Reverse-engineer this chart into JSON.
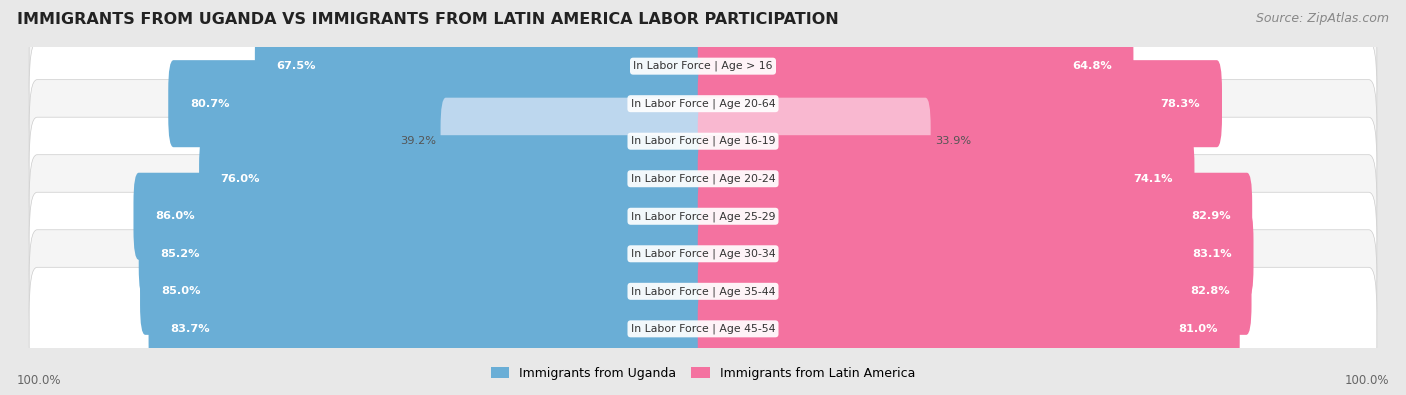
{
  "title": "IMMIGRANTS FROM UGANDA VS IMMIGRANTS FROM LATIN AMERICA LABOR PARTICIPATION",
  "source": "Source: ZipAtlas.com",
  "categories": [
    "In Labor Force | Age > 16",
    "In Labor Force | Age 20-64",
    "In Labor Force | Age 16-19",
    "In Labor Force | Age 20-24",
    "In Labor Force | Age 25-29",
    "In Labor Force | Age 30-34",
    "In Labor Force | Age 35-44",
    "In Labor Force | Age 45-54"
  ],
  "uganda_values": [
    67.5,
    80.7,
    39.2,
    76.0,
    86.0,
    85.2,
    85.0,
    83.7
  ],
  "latin_values": [
    64.8,
    78.3,
    33.9,
    74.1,
    82.9,
    83.1,
    82.8,
    81.0
  ],
  "uganda_color": "#6AAED6",
  "uganda_color_light": "#BDD7EE",
  "latin_color": "#F472A0",
  "latin_color_light": "#F9B8D0",
  "bar_height": 0.72,
  "background_color": "#e8e8e8",
  "row_bg_even": "#f5f5f5",
  "row_bg_odd": "#ffffff",
  "max_val": 100.0,
  "legend_uganda": "Immigrants from Uganda",
  "legend_latin": "Immigrants from Latin America",
  "title_fontsize": 11.5,
  "source_fontsize": 9,
  "low_threshold": 50.0
}
